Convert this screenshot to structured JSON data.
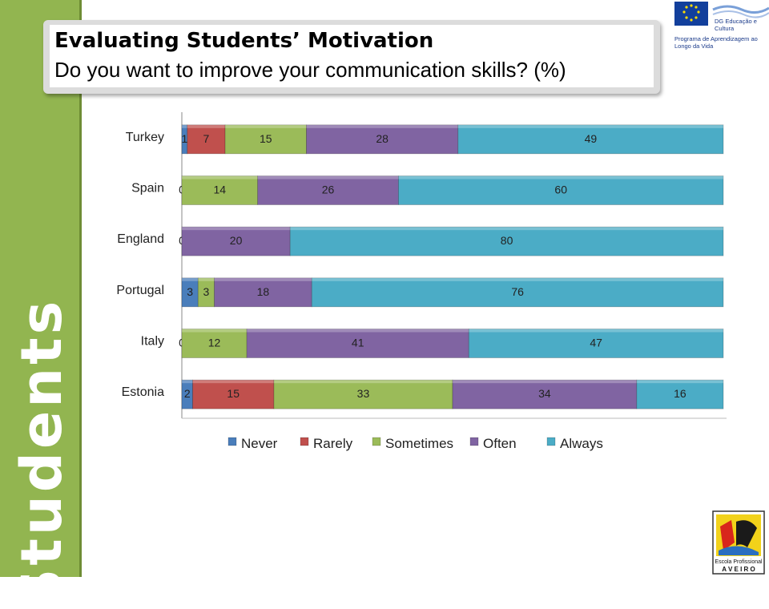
{
  "sidebar": {
    "label": "Students"
  },
  "title": {
    "main": "Evaluating Students’ Motivation",
    "sub": "Do you want to improve your communication skills? (%)"
  },
  "logos": {
    "eu_line1": "DG Educação e Cultura",
    "eu_line2": "Programa de Aprendizagem ao",
    "eu_line3": "Longo da Vida",
    "school_line1": "Escola Profissional",
    "school_line2": "A V E I R O"
  },
  "chart_data": {
    "type": "bar",
    "orientation": "horizontal",
    "stacked": true,
    "categories": [
      "Turkey",
      "Spain",
      "England",
      "Portugal",
      "Italy",
      "Estonia"
    ],
    "series": [
      {
        "name": "Never",
        "color": "#4a7ebb",
        "values": [
          1,
          0,
          0,
          3,
          0,
          2
        ]
      },
      {
        "name": "Rarely",
        "color": "#c0504d",
        "values": [
          7,
          0,
          0,
          0,
          0,
          15
        ]
      },
      {
        "name": "Sometimes",
        "color": "#9bbb59",
        "values": [
          15,
          14,
          0,
          3,
          12,
          33
        ]
      },
      {
        "name": "Often",
        "color": "#8064a2",
        "values": [
          28,
          26,
          20,
          18,
          41,
          34
        ]
      },
      {
        "name": "Always",
        "color": "#4bacc6",
        "values": [
          49,
          60,
          80,
          76,
          47,
          16
        ]
      }
    ],
    "legend": "bottom",
    "grid": false
  }
}
